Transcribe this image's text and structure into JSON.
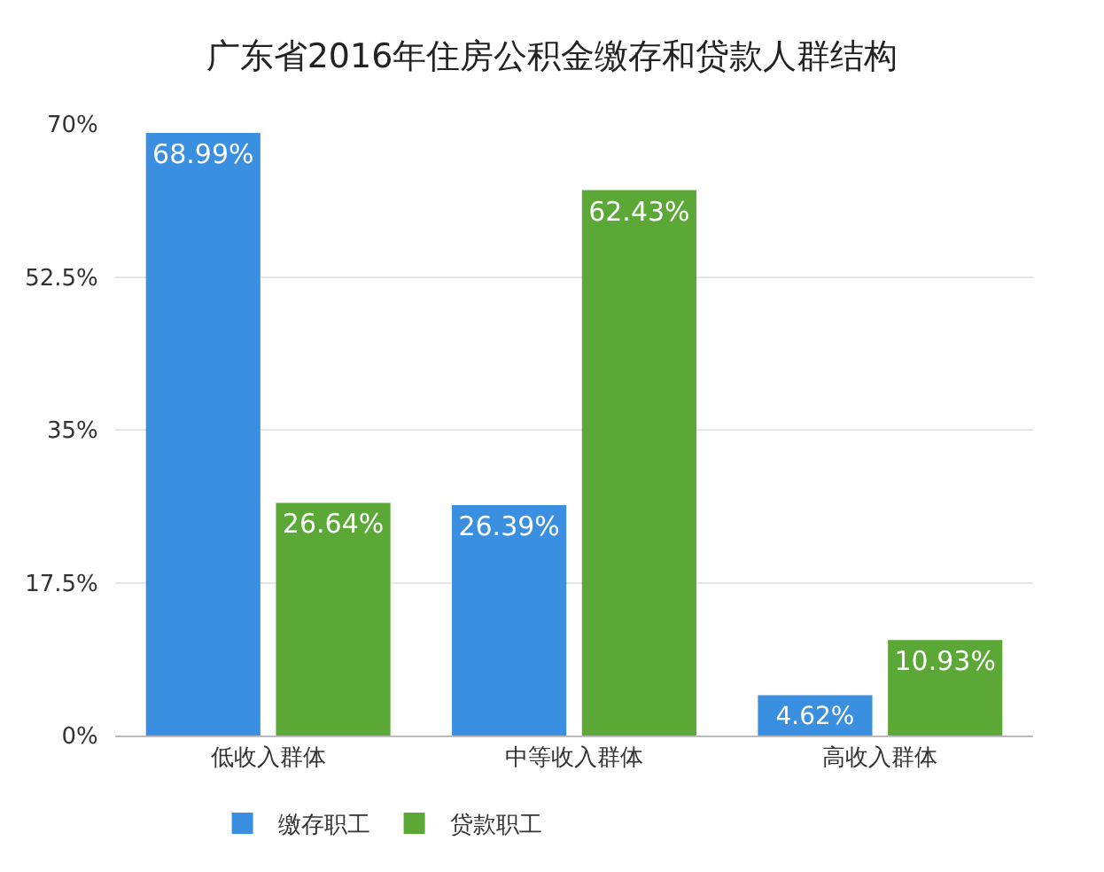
{
  "chart_data": {
    "type": "bar",
    "title": "广东省2016年住房公积金缴存和贷款人群结构",
    "categories": [
      "低收入群体",
      "中等收入群体",
      "高收入群体"
    ],
    "series": [
      {
        "name": "缴存职工",
        "color": "#3b8fe0",
        "values": [
          68.99,
          26.39,
          4.62
        ],
        "value_labels": [
          "68.99%",
          "26.39%",
          "4.62%"
        ]
      },
      {
        "name": "贷款职工",
        "color": "#5ba836",
        "values": [
          26.64,
          62.43,
          10.93
        ],
        "value_labels": [
          "26.64%",
          "62.43%",
          "10.93%"
        ]
      }
    ],
    "ylim": [
      0,
      70
    ],
    "yticks": [
      {
        "value": 0,
        "label": "0%"
      },
      {
        "value": 17.5,
        "label": "17.5%"
      },
      {
        "value": 35,
        "label": "35%"
      },
      {
        "value": 52.5,
        "label": "52.5%"
      },
      {
        "value": 70,
        "label": "70%"
      }
    ],
    "grid": "y",
    "legend": "bottom"
  }
}
